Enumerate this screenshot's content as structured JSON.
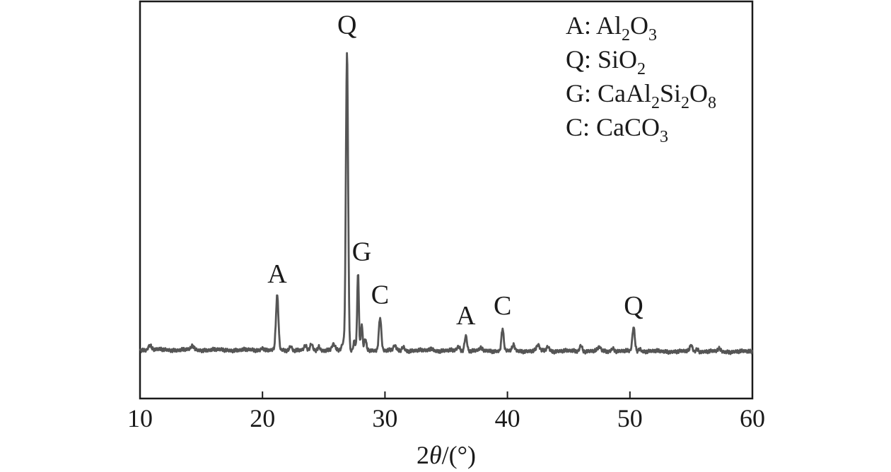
{
  "chart_data": {
    "type": "line",
    "xlabel_prefix": "2",
    "xlabel_var": "θ",
    "xlabel_suffix": "/(°)",
    "xlim": [
      10,
      60
    ],
    "x_ticks": [
      "10",
      "20",
      "30",
      "40",
      "50",
      "60"
    ],
    "x_tick_values": [
      10,
      20,
      30,
      40,
      50,
      60
    ],
    "ylim": [
      0,
      100
    ],
    "line_color": "#555555",
    "baseline": 2.0,
    "peaks": [
      {
        "x": 10.8,
        "h": 1.5,
        "w": 0.12
      },
      {
        "x": 14.3,
        "h": 1.2,
        "w": 0.12
      },
      {
        "x": 20.0,
        "h": 0.8,
        "w": 0.12
      },
      {
        "x": 21.2,
        "h": 17.0,
        "w": 0.1
      },
      {
        "x": 22.3,
        "h": 1.5,
        "w": 0.1
      },
      {
        "x": 23.5,
        "h": 1.2,
        "w": 0.1
      },
      {
        "x": 24.0,
        "h": 2.0,
        "w": 0.1
      },
      {
        "x": 24.6,
        "h": 1.3,
        "w": 0.1
      },
      {
        "x": 25.8,
        "h": 1.8,
        "w": 0.12
      },
      {
        "x": 26.6,
        "h": 2.5,
        "w": 0.12
      },
      {
        "x": 26.9,
        "h": 94.0,
        "w": 0.09
      },
      {
        "x": 27.5,
        "h": 3.0,
        "w": 0.08
      },
      {
        "x": 27.8,
        "h": 24.0,
        "w": 0.07
      },
      {
        "x": 28.1,
        "h": 8.0,
        "w": 0.07
      },
      {
        "x": 28.4,
        "h": 3.5,
        "w": 0.08
      },
      {
        "x": 29.6,
        "h": 10.5,
        "w": 0.1
      },
      {
        "x": 30.8,
        "h": 1.5,
        "w": 0.1
      },
      {
        "x": 31.5,
        "h": 1.3,
        "w": 0.1
      },
      {
        "x": 33.8,
        "h": 0.8,
        "w": 0.12
      },
      {
        "x": 36.0,
        "h": 1.2,
        "w": 0.12
      },
      {
        "x": 36.6,
        "h": 4.8,
        "w": 0.1
      },
      {
        "x": 37.8,
        "h": 0.7,
        "w": 0.12
      },
      {
        "x": 39.6,
        "h": 7.0,
        "w": 0.09
      },
      {
        "x": 40.5,
        "h": 1.8,
        "w": 0.1
      },
      {
        "x": 42.5,
        "h": 1.8,
        "w": 0.12
      },
      {
        "x": 43.3,
        "h": 1.4,
        "w": 0.12
      },
      {
        "x": 46.0,
        "h": 2.0,
        "w": 0.1
      },
      {
        "x": 47.5,
        "h": 1.2,
        "w": 0.12
      },
      {
        "x": 48.6,
        "h": 1.0,
        "w": 0.12
      },
      {
        "x": 50.3,
        "h": 7.5,
        "w": 0.1
      },
      {
        "x": 50.8,
        "h": 1.0,
        "w": 0.1
      },
      {
        "x": 55.0,
        "h": 2.0,
        "w": 0.1
      },
      {
        "x": 55.5,
        "h": 0.8,
        "w": 0.1
      },
      {
        "x": 57.3,
        "h": 0.8,
        "w": 0.12
      }
    ],
    "peak_labels": [
      {
        "text": "A",
        "x": 21.2,
        "y": 23
      },
      {
        "text": "Q",
        "x": 26.9,
        "y": 101
      },
      {
        "text": "G",
        "x": 28.1,
        "y": 30
      },
      {
        "text": "C",
        "x": 29.6,
        "y": 16.5
      },
      {
        "text": "A",
        "x": 36.6,
        "y": 10
      },
      {
        "text": "C",
        "x": 39.6,
        "y": 13
      },
      {
        "text": "Q",
        "x": 50.3,
        "y": 13
      }
    ],
    "legend": [
      {
        "letter": "A",
        "formula": [
          [
            "Al",
            ""
          ],
          [
            "2",
            "sub"
          ],
          [
            "O",
            ""
          ],
          [
            "3",
            "sub"
          ]
        ]
      },
      {
        "letter": "Q",
        "formula": [
          [
            "SiO",
            ""
          ],
          [
            "2",
            "sub"
          ]
        ]
      },
      {
        "letter": "G",
        "formula": [
          [
            "CaAl",
            ""
          ],
          [
            "2",
            "sub"
          ],
          [
            "Si",
            ""
          ],
          [
            "2",
            "sub"
          ],
          [
            "O",
            ""
          ],
          [
            "8",
            "sub"
          ]
        ]
      },
      {
        "letter": "C",
        "formula": [
          [
            "CaCO",
            ""
          ],
          [
            "3",
            "sub"
          ]
        ]
      }
    ],
    "legend_position": "top-right"
  }
}
